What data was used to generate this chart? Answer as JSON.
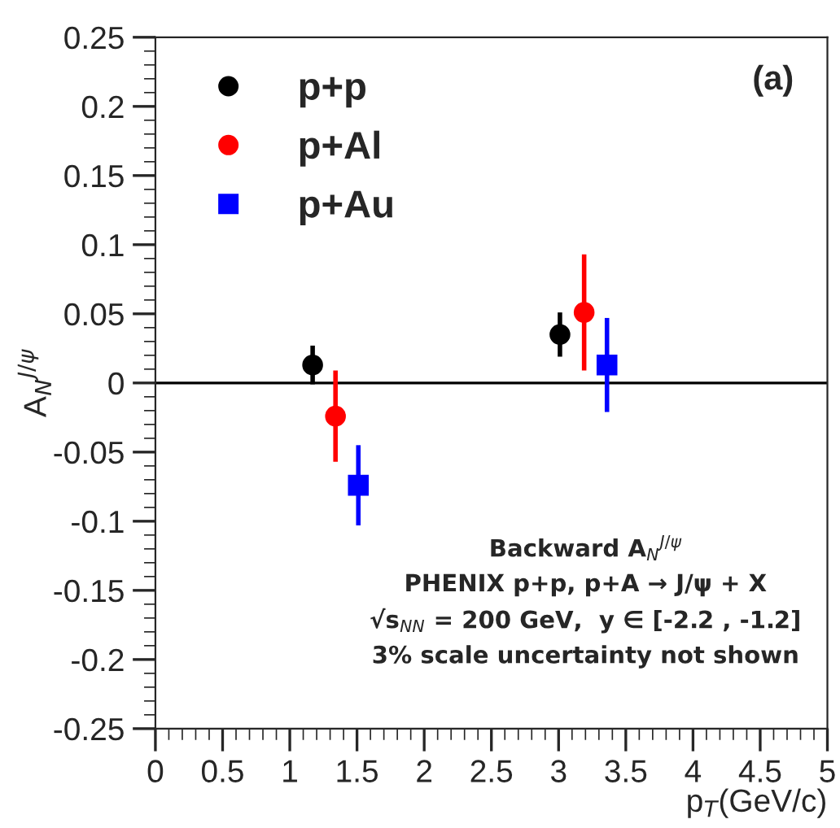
{
  "chart_data": {
    "type": "scatter",
    "xlabel": "p$_{T}$(GeV/c)",
    "ylabel": "A$_{N}$$^{J/ψ}$",
    "series": [
      {
        "name": "p+p",
        "color": "#000000",
        "marker": "circle",
        "x": [
          1.17,
          3.01
        ],
        "values": [
          0.013,
          0.035
        ],
        "errors": [
          0.014,
          0.016
        ]
      },
      {
        "name": "p+Al",
        "color": "#ff0000",
        "marker": "circle",
        "x": [
          1.34,
          3.19
        ],
        "values": [
          -0.024,
          0.051
        ],
        "errors": [
          0.033,
          0.042
        ]
      },
      {
        "name": "p+Au",
        "color": "#0000ff",
        "marker": "square",
        "x": [
          1.51,
          3.36
        ],
        "values": [
          -0.074,
          0.013
        ],
        "errors": [
          0.029,
          0.034
        ]
      }
    ],
    "xlim": [
      0,
      5
    ],
    "ylim": [
      -0.25,
      0.25
    ],
    "xticks": [
      0,
      0.5,
      1,
      1.5,
      2,
      2.5,
      3,
      3.5,
      4,
      4.5,
      5
    ],
    "yticks": [
      -0.25,
      -0.2,
      -0.15,
      -0.1,
      -0.05,
      0,
      0.05,
      0.1,
      0.15,
      0.2,
      0.25
    ],
    "ref_lines": [
      {
        "axis": "y",
        "value": 0,
        "color": "#000000"
      }
    ],
    "legend": "top left",
    "grid": false,
    "annotations": [
      "(a)",
      "Backward A$_{N}$$^{J/ψ}$",
      "PHENIX p+p, p+A → J/ψ + X",
      "√s$_{NN}$ = 200 GeV,  y ∈ [-2.2 , -1.2]",
      "3% scale uncertainty not shown"
    ]
  }
}
